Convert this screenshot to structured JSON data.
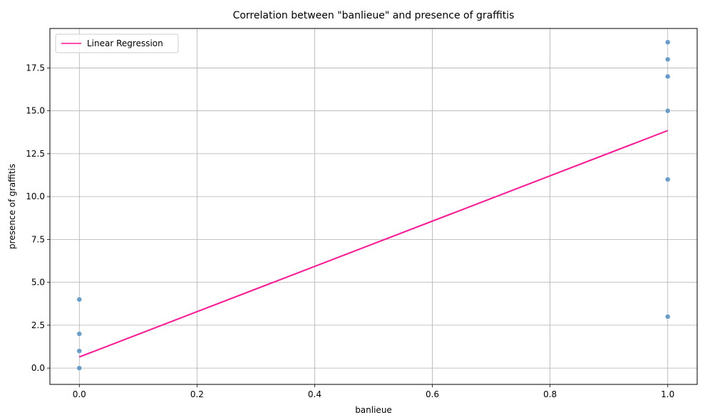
{
  "chart_data": {
    "type": "scatter",
    "title": "Correlation between \"banlieue\" and presence of graffitis",
    "xlabel": "banlieue",
    "ylabel": "presence of graffitis",
    "xlim": [
      -0.05,
      1.05
    ],
    "ylim": [
      -0.95,
      19.8
    ],
    "grid": true,
    "legend_position": "top-left",
    "x_ticks": [
      0.0,
      0.2,
      0.4,
      0.6,
      0.8,
      1.0
    ],
    "x_tick_labels": [
      "0.0",
      "0.2",
      "0.4",
      "0.6",
      "0.8",
      "1.0"
    ],
    "y_ticks": [
      0.0,
      2.5,
      5.0,
      7.5,
      10.0,
      12.5,
      15.0,
      17.5
    ],
    "y_tick_labels": [
      "0.0",
      "2.5",
      "5.0",
      "7.5",
      "10.0",
      "12.5",
      "15.0",
      "17.5"
    ],
    "points": [
      {
        "x": 0,
        "y": 0
      },
      {
        "x": 0,
        "y": 1
      },
      {
        "x": 0,
        "y": 2
      },
      {
        "x": 0,
        "y": 4
      },
      {
        "x": 1,
        "y": 3
      },
      {
        "x": 1,
        "y": 11
      },
      {
        "x": 1,
        "y": 15
      },
      {
        "x": 1,
        "y": 17
      },
      {
        "x": 1,
        "y": 18
      },
      {
        "x": 1,
        "y": 19
      }
    ],
    "regression": {
      "name": "Linear Regression",
      "x": [
        0,
        1
      ],
      "y": [
        0.65,
        13.85
      ]
    },
    "colors": {
      "points": "#5b95c8",
      "regression": "#ff1493",
      "grid": "#b0b0b0"
    }
  }
}
